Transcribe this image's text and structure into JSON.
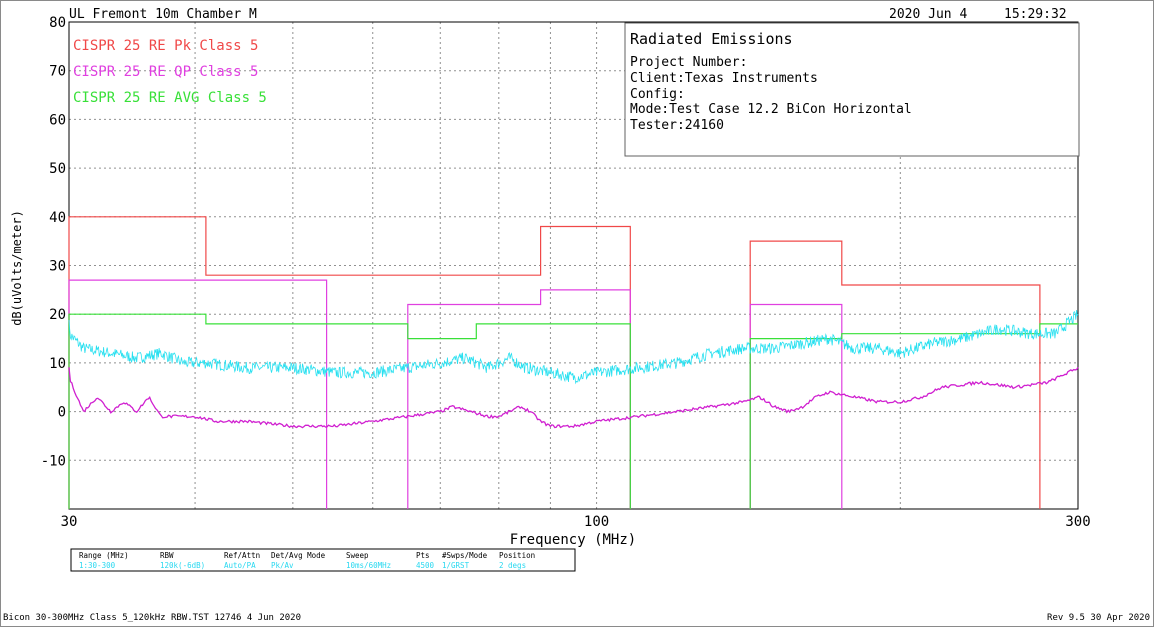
{
  "header": {
    "title": "UL Fremont 10m Chamber M",
    "date": "2020 Jun 4",
    "time": "15:29:32"
  },
  "info_box": {
    "title": "Radiated Emissions",
    "lines": [
      "Project Number:",
      "Client:Texas Instruments",
      "Config:",
      "Mode:Test Case 12.2 BiCon Horizontal",
      "Tester:24160"
    ]
  },
  "colors": {
    "pk_limit": "#f04848",
    "qp_limit": "#e040e0",
    "avg_limit": "#38e038",
    "pk_trace": "#28e0f0",
    "avg_trace": "#d020d0",
    "grid": "#909090",
    "settings_text": "#28d8f0"
  },
  "settings": {
    "headers": [
      "Range (MHz)",
      "RBW",
      "Ref/Attn",
      "Det/Avg Mode",
      "Sweep",
      "Pts",
      "#Swps/Mode",
      "Position"
    ],
    "values": [
      "1:30-300",
      "120k(-6dB)",
      "Auto/PA",
      "Pk/Av",
      "10ms/60MHz",
      "4500",
      "1/GRST",
      "2 degs"
    ]
  },
  "footer": {
    "left": "Bicon 30-300MHz Class 5_120kHz RBW.TST 12746  4 Jun 2020",
    "right": "Rev 9.5 30 Apr 2020"
  },
  "chart_data": {
    "type": "line",
    "xlabel": "Frequency (MHz)",
    "ylabel": "dB(uVolts/meter)",
    "xscale": "log",
    "xlim": [
      30,
      300
    ],
    "ylim": [
      -20,
      80
    ],
    "x_ticks": [
      30,
      100,
      300
    ],
    "y_ticks": [
      80,
      70,
      60,
      50,
      40,
      30,
      20,
      10,
      0,
      -10
    ],
    "grid": true,
    "legend_position": "top-left",
    "limits": [
      {
        "name": "CISPR 25 RE Pk Class 5",
        "color_key": "pk_limit",
        "segments": [
          {
            "f1": 30,
            "f2": 41,
            "level": 40
          },
          {
            "f1": 41,
            "f2": 88,
            "level": 28
          },
          {
            "f1": 88,
            "f2": 108,
            "level": 38
          },
          {
            "f1": 142,
            "f2": 175,
            "level": 35
          },
          {
            "f1": 175,
            "f2": 275,
            "level": 26
          }
        ]
      },
      {
        "name": "CISPR 25 RE QP Class 5",
        "color_key": "qp_limit",
        "segments": [
          {
            "f1": 30,
            "f2": 54,
            "level": 27
          },
          {
            "f1": 65,
            "f2": 76,
            "level": 22
          },
          {
            "f1": 76,
            "f2": 88,
            "level": 22
          },
          {
            "f1": 88,
            "f2": 108,
            "level": 25
          },
          {
            "f1": 142,
            "f2": 175,
            "level": 22
          }
        ]
      },
      {
        "name": "CISPR 25 RE AVG Class 5",
        "color_key": "avg_limit",
        "segments": [
          {
            "f1": 30,
            "f2": 41,
            "level": 20
          },
          {
            "f1": 41,
            "f2": 65,
            "level": 18
          },
          {
            "f1": 65,
            "f2": 76,
            "level": 15
          },
          {
            "f1": 76,
            "f2": 88,
            "level": 18
          },
          {
            "f1": 88,
            "f2": 108,
            "level": 18
          },
          {
            "f1": 142,
            "f2": 175,
            "level": 15
          },
          {
            "f1": 175,
            "f2": 275,
            "level": 16
          },
          {
            "f1": 275,
            "f2": 300,
            "level": 18
          }
        ]
      }
    ],
    "series": [
      {
        "color_key": "pk_trace",
        "noise": 1.2,
        "x": [
          30,
          31,
          33,
          35,
          37,
          39,
          41,
          45,
          50,
          55,
          60,
          65,
          70,
          74,
          78,
          82,
          85,
          90,
          95,
          100,
          110,
          120,
          130,
          140,
          150,
          160,
          170,
          180,
          190,
          200,
          215,
          230,
          250,
          270,
          285,
          300
        ],
        "y": [
          16,
          13,
          12,
          11,
          12,
          10,
          10,
          9,
          9,
          8,
          8,
          9,
          10,
          11,
          9,
          11,
          9,
          8,
          7,
          8,
          9,
          10,
          12,
          13,
          13,
          14,
          15,
          13,
          13,
          12,
          14,
          15,
          17,
          16,
          16,
          20
        ]
      },
      {
        "color_key": "avg_trace",
        "noise": 0.3,
        "x": [
          30,
          31,
          32,
          33,
          34,
          35,
          36,
          37,
          38,
          39,
          40,
          42,
          45,
          50,
          55,
          60,
          65,
          70,
          72,
          75,
          78,
          80,
          82,
          84,
          86,
          88,
          90,
          95,
          100,
          110,
          120,
          130,
          140,
          145,
          150,
          155,
          160,
          165,
          170,
          180,
          190,
          200,
          210,
          220,
          240,
          260,
          280,
          300
        ],
        "y": [
          7,
          0,
          3,
          0,
          2,
          0,
          3,
          -1,
          -1,
          -1,
          -1,
          -2,
          -2,
          -3,
          -3,
          -2,
          -1,
          0,
          1,
          0,
          -1,
          -1,
          0,
          1,
          0,
          -2,
          -3,
          -3,
          -2,
          -1,
          0,
          1,
          2,
          3,
          1,
          0,
          1,
          3,
          4,
          3,
          2,
          2,
          3,
          5,
          6,
          5,
          6,
          9
        ]
      }
    ]
  }
}
